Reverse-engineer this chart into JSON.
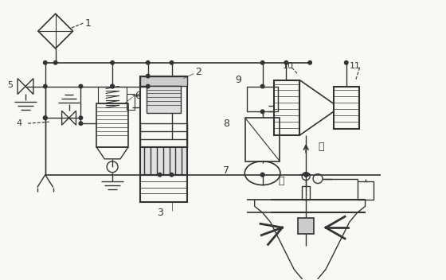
{
  "bg_color": "#f5f5f0",
  "line_color": "#333333",
  "fig_width": 5.6,
  "fig_height": 3.52,
  "dpi": 100
}
